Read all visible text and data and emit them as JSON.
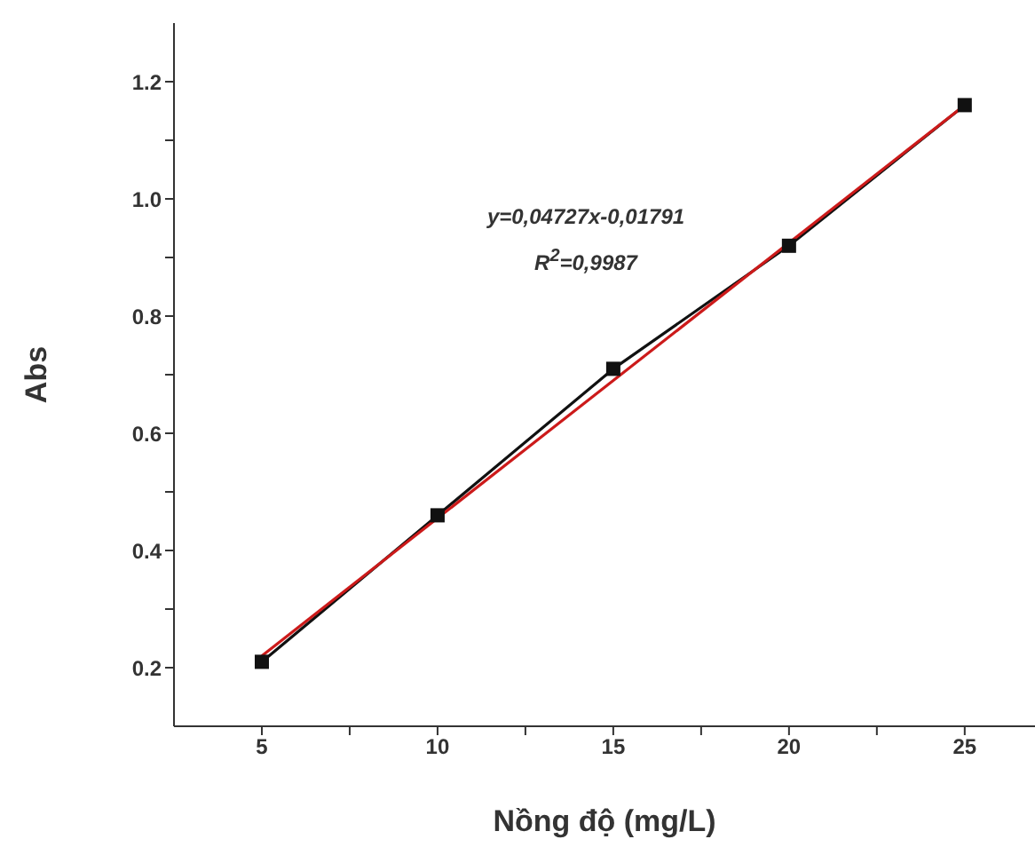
{
  "chart_data": {
    "type": "line",
    "xlabel": "Nồng độ (mg/L)",
    "ylabel": "Abs",
    "xlim": [
      2.5,
      27
    ],
    "xticks": [
      5,
      {
        "value": 7.5,
        "label": null
      },
      10,
      {
        "value": 12.5,
        "label": null
      },
      15,
      {
        "value": 17.5,
        "label": null
      },
      20,
      {
        "value": 22.5,
        "label": null
      },
      25
    ],
    "ylim": [
      0.1,
      1.3
    ],
    "yticks": [
      0.2,
      {
        "value": 0.3,
        "label": null
      },
      0.4,
      {
        "value": 0.5,
        "label": null
      },
      0.6,
      {
        "value": 0.7,
        "label": null
      },
      0.8,
      {
        "value": 0.9,
        "label": null
      },
      {
        "value": 1,
        "label": "1.0"
      },
      {
        "value": 1.1,
        "label": null
      },
      1.2
    ],
    "series": [
      {
        "color": "#111111",
        "marker": "square",
        "x": [
          5,
          10,
          15,
          20,
          25
        ],
        "values": [
          0.21,
          0.46,
          0.71,
          0.92,
          1.16
        ]
      },
      {
        "color": "#cc1a1a",
        "marker": "none",
        "x": [
          5,
          25
        ],
        "values": [
          0.22,
          1.16
        ]
      }
    ],
    "annotations": [
      "y=0,04727x-0,01791",
      "R$^{2}$=0,9987"
    ]
  }
}
